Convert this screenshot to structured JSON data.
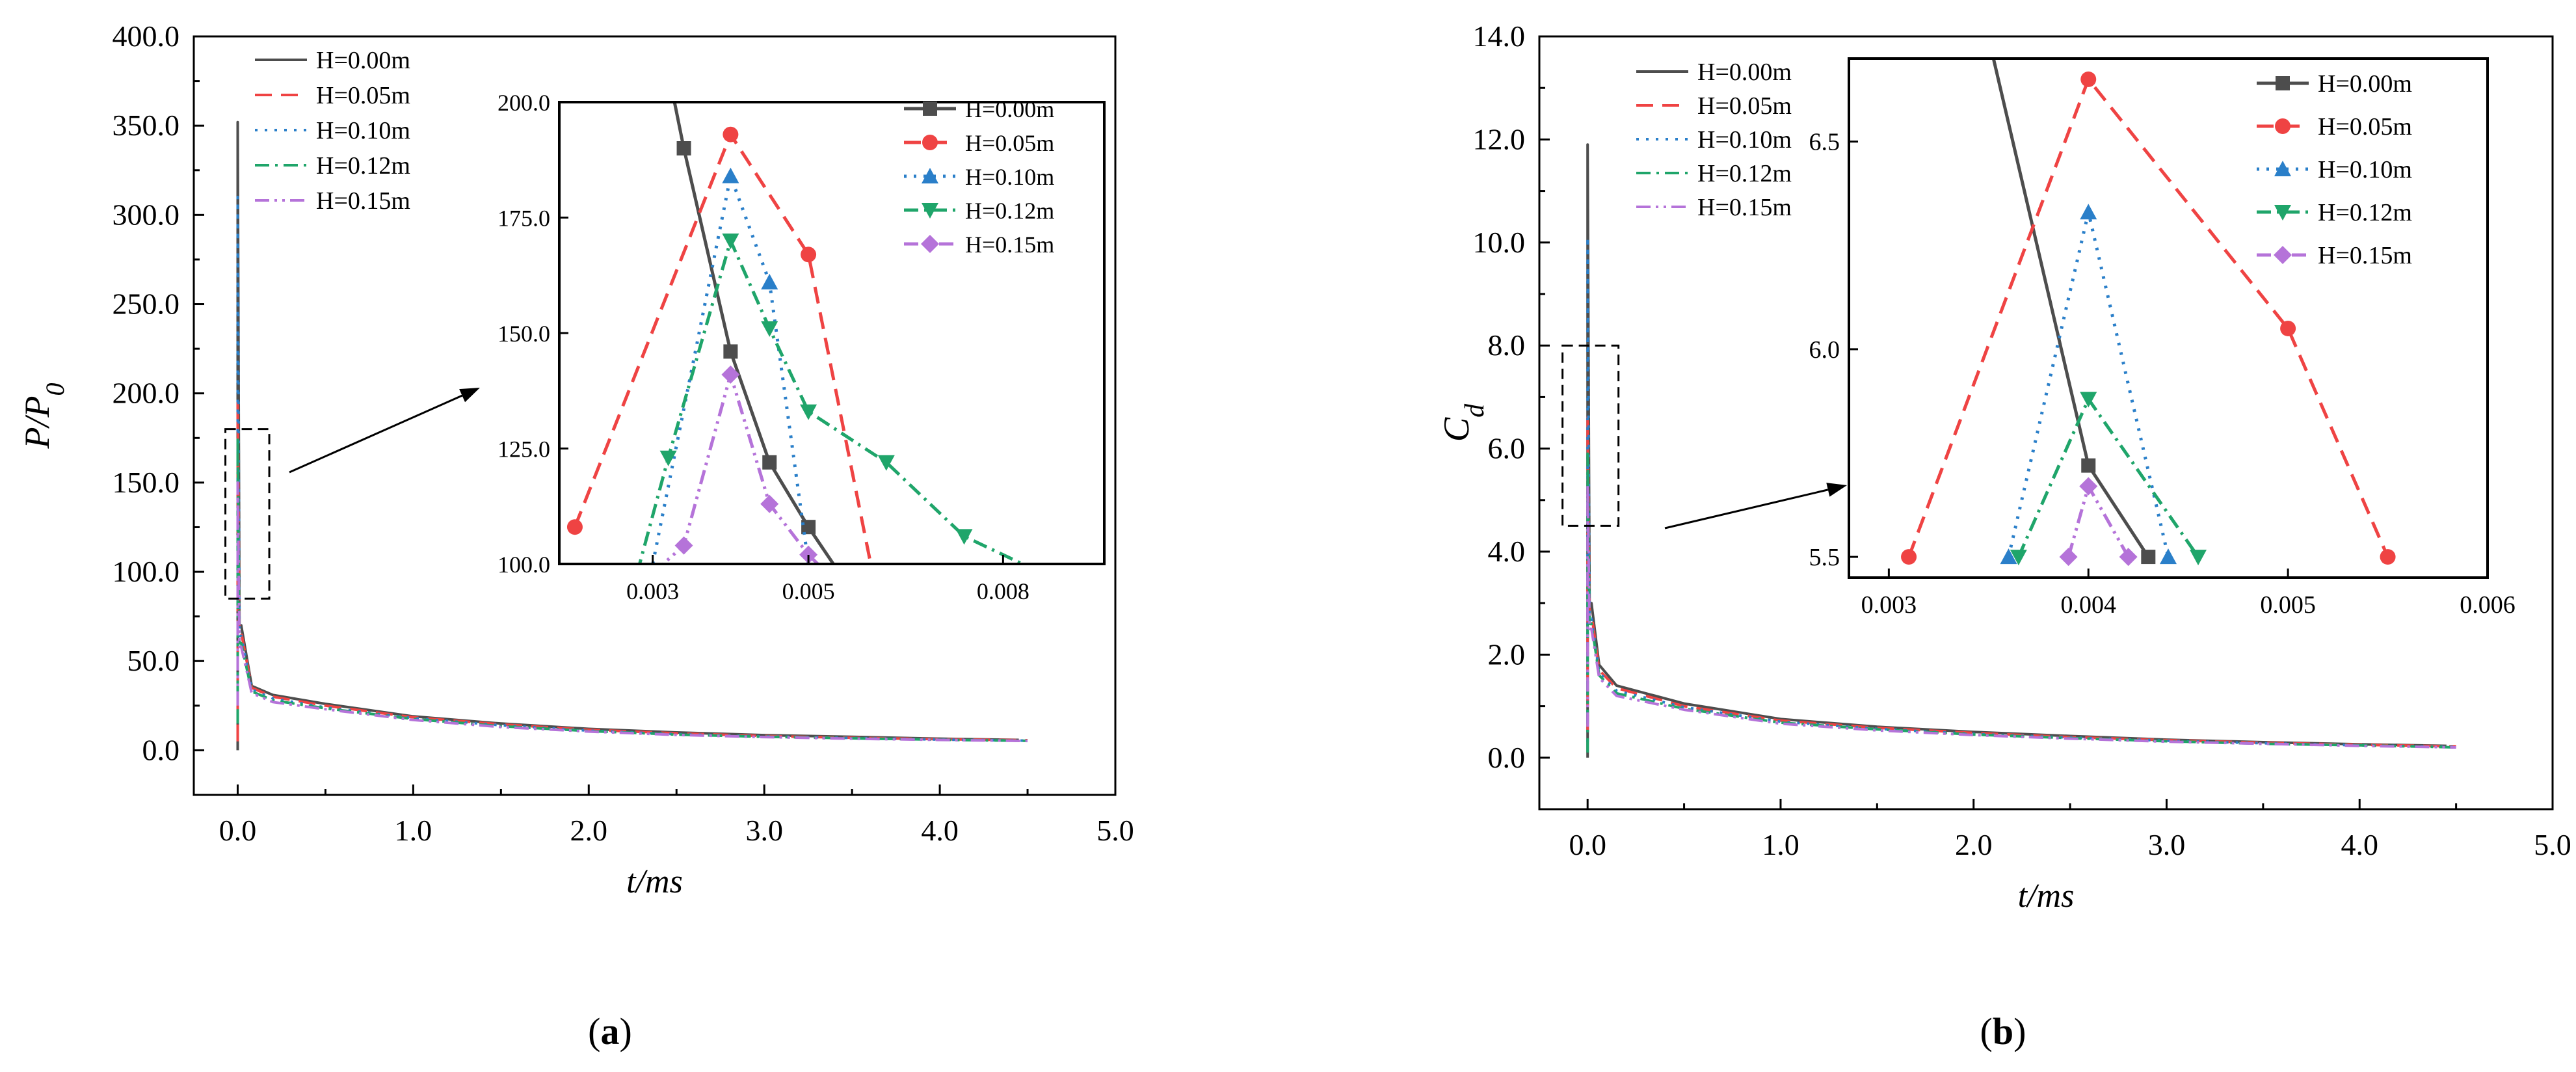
{
  "colors": {
    "H=0.00m": "#4d4d4d",
    "H=0.05m": "#ef4343",
    "H=0.10m": "#2a7fc9",
    "H=0.12m": "#1fa56a",
    "H=0.15m": "#b573d9",
    "axis": "#000000"
  },
  "chart_data": [
    {
      "id": "a",
      "caption_letter": "a",
      "type": "line",
      "xlabel": "t/ms",
      "ylabel": "P/P0",
      "xlim": [
        -0.25,
        5.0
      ],
      "ylim": [
        -25,
        400
      ],
      "xticks": [
        0,
        1,
        2,
        3,
        4,
        5
      ],
      "yticks": [
        0,
        50,
        100,
        150,
        200,
        250,
        300,
        350,
        400
      ],
      "xtick_labels": [
        "0.0",
        "1.0",
        "2.0",
        "3.0",
        "4.0",
        "5.0"
      ],
      "ytick_labels": [
        "0.0",
        "50.0",
        "100.0",
        "150.0",
        "200.0",
        "250.0",
        "300.0",
        "350.0",
        "400.0"
      ],
      "legend": [
        "H=0.00m",
        "H=0.05m",
        "H=0.10m",
        "H=0.12m",
        "H=0.15m"
      ],
      "series": [
        {
          "name": "H=0.00m",
          "spike": [
            0,
            352
          ],
          "tail": [
            [
              0.02,
              70
            ],
            [
              0.08,
              36
            ],
            [
              0.2,
              31
            ],
            [
              0.5,
              26
            ],
            [
              1,
              19
            ],
            [
              1.5,
              15
            ],
            [
              2,
              12
            ],
            [
              2.5,
              10
            ],
            [
              3,
              8.5
            ],
            [
              3.5,
              7.5
            ],
            [
              4,
              6.5
            ],
            [
              4.45,
              5.8
            ]
          ]
        },
        {
          "name": "H=0.05m",
          "spike": [
            5,
            195
          ],
          "tail": [
            [
              0.02,
              66
            ],
            [
              0.08,
              35
            ],
            [
              0.2,
              30
            ],
            [
              0.5,
              25
            ],
            [
              1,
              18.5
            ],
            [
              1.5,
              14.5
            ],
            [
              2,
              11.5
            ],
            [
              2.5,
              9.5
            ],
            [
              3,
              8
            ],
            [
              3.5,
              7
            ],
            [
              4,
              6.2
            ],
            [
              4.5,
              5.6
            ]
          ]
        },
        {
          "name": "H=0.10m",
          "spike": [
            20,
            310
          ],
          "tail": [
            [
              0.02,
              64
            ],
            [
              0.08,
              34
            ],
            [
              0.2,
              29
            ],
            [
              0.5,
              24
            ],
            [
              1,
              18
            ],
            [
              1.5,
              14
            ],
            [
              2,
              11
            ],
            [
              2.5,
              9
            ],
            [
              3,
              7.8
            ],
            [
              3.5,
              6.9
            ],
            [
              4,
              6
            ],
            [
              4.5,
              5.4
            ]
          ]
        },
        {
          "name": "H=0.12m",
          "spike": [
            15,
            175
          ],
          "tail": [
            [
              0.02,
              60
            ],
            [
              0.08,
              33
            ],
            [
              0.2,
              28
            ],
            [
              0.5,
              23.5
            ],
            [
              1,
              17.5
            ],
            [
              1.5,
              13.5
            ],
            [
              2,
              10.8
            ],
            [
              2.5,
              8.8
            ],
            [
              3,
              7.6
            ],
            [
              3.5,
              6.7
            ],
            [
              4,
              5.9
            ],
            [
              4.5,
              5.3
            ]
          ]
        },
        {
          "name": "H=0.15m",
          "spike": [
            25,
            150
          ],
          "tail": [
            [
              0.02,
              58
            ],
            [
              0.08,
              32
            ],
            [
              0.2,
              27
            ],
            [
              0.5,
              23
            ],
            [
              1,
              17
            ],
            [
              1.5,
              13
            ],
            [
              2,
              10.5
            ],
            [
              2.5,
              8.6
            ],
            [
              3,
              7.4
            ],
            [
              3.5,
              6.5
            ],
            [
              4,
              5.8
            ],
            [
              4.5,
              5.2
            ]
          ]
        }
      ],
      "zoom_box": {
        "x": [
          -0.07,
          0.18
        ],
        "y": [
          85,
          180
        ]
      },
      "inset": {
        "type": "line",
        "xlim": [
          0.0018,
          0.0088
        ],
        "ylim": [
          100,
          200
        ],
        "xticks": [
          0.003,
          0.005,
          0.008
        ],
        "xtick_labels": [
          "0.003",
          "0.005",
          "0.008"
        ],
        "xtick_positions": [
          0.003,
          0.005,
          0.0075
        ],
        "yticks": [
          100,
          125,
          150,
          175,
          200
        ],
        "ytick_labels": [
          "100.0",
          "125.0",
          "150.0",
          "175.0",
          "200.0"
        ],
        "legend": [
          "H=0.00m",
          "H=0.05m",
          "H=0.10m",
          "H=0.12m",
          "H=0.15m"
        ],
        "series": [
          {
            "name": "H=0.00m",
            "marker": "square",
            "x": [
              0.0031,
              0.0034,
              0.004,
              0.0045,
              0.005,
              0.0054
            ],
            "y": [
              215,
              190,
              146,
              122,
              108,
              98
            ]
          },
          {
            "name": "H=0.05m",
            "marker": "circle",
            "x": [
              0.002,
              0.004,
              0.005,
              0.0058
            ],
            "y": [
              108,
              193,
              167,
              100
            ]
          },
          {
            "name": "H=0.10m",
            "marker": "triangle-up",
            "x": [
              0.003,
              0.004,
              0.0045,
              0.005
            ],
            "y": [
              100,
              184,
              161,
              100
            ]
          },
          {
            "name": "H=0.12m",
            "marker": "triangle-down",
            "x": [
              0.0028,
              0.0032,
              0.004,
              0.0045,
              0.005,
              0.006,
              0.007,
              0.008
            ],
            "y": [
              98,
              123,
              170,
              151,
              133,
              122,
              106,
              98
            ]
          },
          {
            "name": "H=0.15m",
            "marker": "diamond",
            "x": [
              0.003,
              0.0034,
              0.004,
              0.0045,
              0.005,
              0.0053
            ],
            "y": [
              98,
              104,
              141,
              113,
              102,
              97
            ]
          }
        ]
      }
    },
    {
      "id": "b",
      "caption_letter": "b",
      "type": "line",
      "xlabel": "t/ms",
      "ylabel": "Cd",
      "xlim": [
        -0.25,
        5.0
      ],
      "ylim": [
        -1.0,
        14.0
      ],
      "xticks": [
        0,
        1,
        2,
        3,
        4,
        5
      ],
      "yticks": [
        0,
        2,
        4,
        6,
        8,
        10,
        12,
        14
      ],
      "xtick_labels": [
        "0.0",
        "1.0",
        "2.0",
        "3.0",
        "4.0",
        "5.0"
      ],
      "ytick_labels": [
        "0.0",
        "2.0",
        "4.0",
        "6.0",
        "8.0",
        "10.0",
        "12.0",
        "14.0"
      ],
      "legend": [
        "H=0.00m",
        "H=0.05m",
        "H=0.10m",
        "H=0.12m",
        "H=0.15m"
      ],
      "series": [
        {
          "name": "H=0.00m",
          "spike": [
            0,
            11.9
          ],
          "tail": [
            [
              0.02,
              3.0
            ],
            [
              0.06,
              1.8
            ],
            [
              0.15,
              1.4
            ],
            [
              0.5,
              1.05
            ],
            [
              1,
              0.75
            ],
            [
              1.5,
              0.6
            ],
            [
              2,
              0.5
            ],
            [
              2.5,
              0.42
            ],
            [
              3,
              0.35
            ],
            [
              3.5,
              0.3
            ],
            [
              4,
              0.26
            ],
            [
              4.45,
              0.23
            ]
          ]
        },
        {
          "name": "H=0.05m",
          "spike": [
            0.5,
            6.6
          ],
          "tail": [
            [
              0.02,
              2.8
            ],
            [
              0.06,
              1.7
            ],
            [
              0.15,
              1.35
            ],
            [
              0.5,
              1.0
            ],
            [
              1,
              0.72
            ],
            [
              1.5,
              0.58
            ],
            [
              2,
              0.48
            ],
            [
              2.5,
              0.4
            ],
            [
              3,
              0.34
            ],
            [
              3.5,
              0.29
            ],
            [
              4,
              0.25
            ],
            [
              4.5,
              0.22
            ]
          ]
        },
        {
          "name": "H=0.10m",
          "spike": [
            0.3,
            10.1
          ],
          "tail": [
            [
              0.02,
              2.7
            ],
            [
              0.06,
              1.65
            ],
            [
              0.15,
              1.3
            ],
            [
              0.5,
              0.98
            ],
            [
              1,
              0.7
            ],
            [
              1.5,
              0.56
            ],
            [
              2,
              0.46
            ],
            [
              2.5,
              0.39
            ],
            [
              3,
              0.33
            ],
            [
              3.5,
              0.28
            ],
            [
              4,
              0.24
            ],
            [
              4.5,
              0.21
            ]
          ]
        },
        {
          "name": "H=0.12m",
          "spike": [
            0.1,
            5.9
          ],
          "tail": [
            [
              0.02,
              2.6
            ],
            [
              0.06,
              1.6
            ],
            [
              0.15,
              1.25
            ],
            [
              0.5,
              0.95
            ],
            [
              1,
              0.68
            ],
            [
              1.5,
              0.55
            ],
            [
              2,
              0.45
            ],
            [
              2.5,
              0.38
            ],
            [
              3,
              0.32
            ],
            [
              3.5,
              0.27
            ],
            [
              4,
              0.24
            ],
            [
              4.5,
              0.2
            ]
          ]
        },
        {
          "name": "H=0.15m",
          "spike": [
            0.6,
            5.3
          ],
          "tail": [
            [
              0.02,
              2.5
            ],
            [
              0.06,
              1.55
            ],
            [
              0.15,
              1.2
            ],
            [
              0.5,
              0.93
            ],
            [
              1,
              0.66
            ],
            [
              1.5,
              0.53
            ],
            [
              2,
              0.44
            ],
            [
              2.5,
              0.37
            ],
            [
              3,
              0.31
            ],
            [
              3.5,
              0.27
            ],
            [
              4,
              0.23
            ],
            [
              4.5,
              0.2
            ]
          ]
        }
      ],
      "zoom_box": {
        "x": [
          -0.13,
          0.16
        ],
        "y": [
          4.5,
          8.0
        ]
      },
      "inset": {
        "type": "line",
        "xlim": [
          0.0028,
          0.006
        ],
        "ylim": [
          5.45,
          6.7
        ],
        "xticks": [
          0.003,
          0.004,
          0.005,
          0.006
        ],
        "xtick_labels": [
          "0.003",
          "0.004",
          "0.005",
          "0.006"
        ],
        "yticks": [
          5.5,
          6.0,
          6.5
        ],
        "ytick_labels": [
          "5.5",
          "6.0",
          "6.5"
        ],
        "legend": [
          "H=0.00m",
          "H=0.05m",
          "H=0.10m",
          "H=0.12m",
          "H=0.15m"
        ],
        "series": [
          {
            "name": "H=0.00m",
            "marker": "square",
            "x": [
              0.0035,
              0.004,
              0.0043
            ],
            "y": [
              6.75,
              5.72,
              5.5
            ]
          },
          {
            "name": "H=0.05m",
            "marker": "circle",
            "x": [
              0.0031,
              0.004,
              0.005,
              0.0055
            ],
            "y": [
              5.5,
              6.65,
              6.05,
              5.5
            ]
          },
          {
            "name": "H=0.10m",
            "marker": "triangle-up",
            "x": [
              0.0036,
              0.004,
              0.0044
            ],
            "y": [
              5.5,
              6.33,
              5.5
            ]
          },
          {
            "name": "H=0.12m",
            "marker": "triangle-down",
            "x": [
              0.00365,
              0.004,
              0.00455
            ],
            "y": [
              5.5,
              5.88,
              5.5
            ]
          },
          {
            "name": "H=0.15m",
            "marker": "diamond",
            "x": [
              0.0039,
              0.004,
              0.0042
            ],
            "y": [
              5.5,
              5.67,
              5.5
            ]
          }
        ]
      }
    }
  ]
}
